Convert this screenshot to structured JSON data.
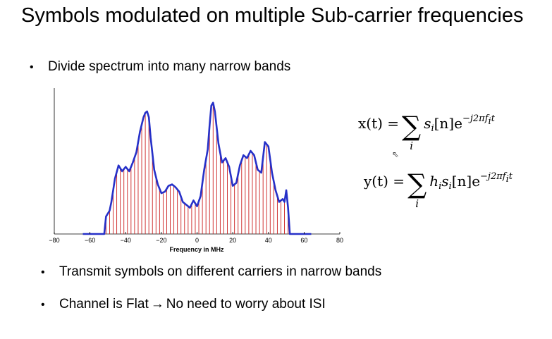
{
  "slide": {
    "title": "Symbols modulated on multiple Sub-carrier frequencies",
    "bullets": [
      "Divide spectrum into many narrow bands",
      "Transmit symbols on different carriers in narrow bands"
    ],
    "bullet3": {
      "left": "Channel is Flat",
      "arrow": "→",
      "right": "No need to worry about ISI"
    }
  },
  "equations": {
    "x": {
      "lhs": "x(t) =",
      "sum_index": "i",
      "term_s": "s",
      "term_s_sub": "i",
      "term_n": "[n]e",
      "exponent": "−j2πf",
      "exponent_sub": "i",
      "exponent_tail": "t"
    },
    "y": {
      "lhs": "y(t) =",
      "sum_index": "i",
      "term_h": "h",
      "term_h_sub": "i",
      "term_s": "s",
      "term_s_sub": "i",
      "term_n": "[n]e",
      "exponent": "−j2πf",
      "exponent_sub": "i",
      "exponent_tail": "t"
    }
  },
  "chart_data": {
    "type": "line",
    "xlabel": "Frequency in MHz",
    "xlim": [
      -80,
      80
    ],
    "xticks": [
      -80,
      -60,
      -40,
      -20,
      0,
      20,
      40,
      60,
      80
    ],
    "ylim": [
      0,
      1.0
    ],
    "envelope": {
      "color": "#2630c8",
      "x": [
        -64,
        -52,
        -51,
        -50,
        -49,
        -48,
        -46,
        -44,
        -42,
        -40,
        -38,
        -36,
        -34,
        -32,
        -30,
        -29,
        -28,
        -27,
        -26,
        -24,
        -22,
        -20,
        -18,
        -16,
        -14,
        -12,
        -10,
        -8,
        -6,
        -4,
        -2,
        0,
        2,
        4,
        6,
        7,
        8,
        9,
        10,
        12,
        14,
        16,
        18,
        20,
        22,
        24,
        26,
        28,
        30,
        32,
        34,
        36,
        38,
        40,
        42,
        44,
        46,
        48,
        49,
        50,
        51,
        52,
        64
      ],
      "y": [
        0.0,
        0.0,
        0.12,
        0.14,
        0.16,
        0.22,
        0.38,
        0.47,
        0.43,
        0.46,
        0.43,
        0.49,
        0.56,
        0.7,
        0.8,
        0.83,
        0.84,
        0.8,
        0.66,
        0.44,
        0.34,
        0.28,
        0.29,
        0.33,
        0.34,
        0.32,
        0.29,
        0.22,
        0.2,
        0.18,
        0.23,
        0.19,
        0.26,
        0.44,
        0.58,
        0.74,
        0.88,
        0.9,
        0.84,
        0.62,
        0.49,
        0.52,
        0.46,
        0.33,
        0.35,
        0.47,
        0.54,
        0.52,
        0.57,
        0.54,
        0.44,
        0.42,
        0.63,
        0.6,
        0.42,
        0.3,
        0.22,
        0.24,
        0.22,
        0.3,
        0.18,
        0.0,
        0.0
      ]
    },
    "subcarriers": {
      "color": "#cc2020",
      "spacing": 2,
      "range": [
        -51,
        51
      ]
    }
  }
}
